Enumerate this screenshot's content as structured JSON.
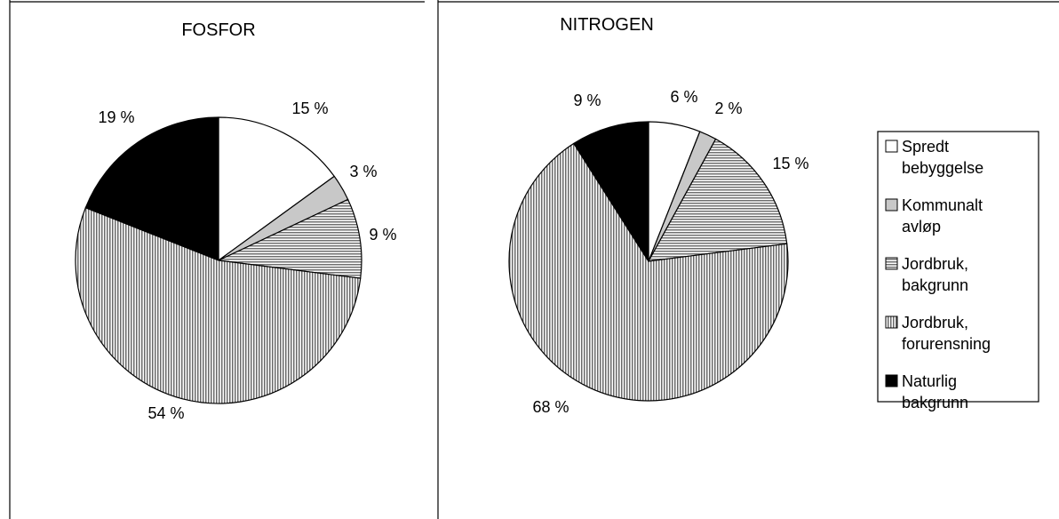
{
  "chart_data": [
    {
      "type": "pie",
      "title": "FOSFOR",
      "categories": [
        "Spredt bebyggelse",
        "Kommunalt avløp",
        "Jordbruk, bakgrunn",
        "Jordbruk, forurensning",
        "Naturlig bakgrunn"
      ],
      "values": [
        15,
        3,
        9,
        54,
        19
      ],
      "labels": [
        "15 %",
        "3 %",
        "9 %",
        "54 %",
        "19 %"
      ]
    },
    {
      "type": "pie",
      "title": "NITROGEN",
      "categories": [
        "Spredt bebyggelse",
        "Kommunalt avløp",
        "Jordbruk, bakgrunn",
        "Jordbruk, forurensning",
        "Naturlig bakgrunn"
      ],
      "values": [
        6,
        2,
        15,
        68,
        9
      ],
      "labels": [
        "6 %",
        "2 %",
        "15 %",
        "68 %",
        "9 %"
      ]
    }
  ],
  "legend": {
    "placement": "right",
    "items": [
      {
        "lines": [
          "Spredt",
          "bebyggelse"
        ],
        "fill": "white"
      },
      {
        "lines": [
          "Kommunalt",
          "avløp"
        ],
        "fill": "light-gray"
      },
      {
        "lines": [
          "Jordbruk,",
          "bakgrunn"
        ],
        "fill": "horizontal-hatch"
      },
      {
        "lines": [
          "Jordbruk,",
          "forurensning"
        ],
        "fill": "vertical-hatch"
      },
      {
        "lines": [
          "Naturlig",
          "bakgrunn"
        ],
        "fill": "black"
      }
    ]
  },
  "colors": {
    "outline": "#000000",
    "background": "#ffffff",
    "light_gray": "#c8c8c8",
    "hatch_gray": "#8c8c8c",
    "hatch_dark": "#5a5a5a",
    "black": "#000000"
  }
}
